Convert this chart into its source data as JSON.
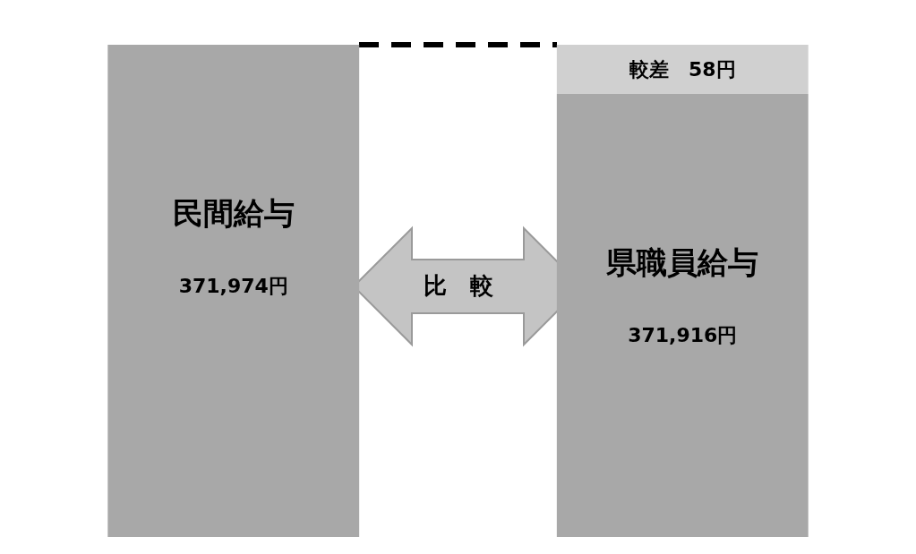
{
  "chart_data": {
    "type": "other",
    "categories": [
      "民間給与",
      "県職員給与"
    ],
    "series": [
      {
        "color": "#a8a8a8",
        "values": [
          371974,
          371916
        ],
        "value_labels": [
          "371,974円",
          "371,916円"
        ]
      },
      {
        "color": "#d0d0d0",
        "values": [
          null,
          58
        ],
        "value_labels": [
          null,
          "較差　58円"
        ]
      }
    ],
    "annotations": [
      "比　較"
    ]
  }
}
